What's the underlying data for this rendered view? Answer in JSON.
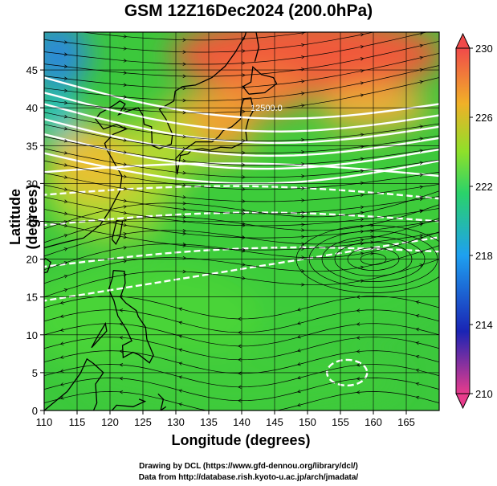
{
  "title": "GSM 12Z16Dec2024 (200.0hPa)",
  "x_axis": {
    "label": "Longitude (degrees)",
    "range": [
      110,
      170
    ],
    "ticks": [
      "110",
      "115",
      "120",
      "125",
      "130",
      "135",
      "140",
      "145",
      "150",
      "155",
      "160",
      "165"
    ]
  },
  "y_axis": {
    "label": "Latitude  (degrees)",
    "range": [
      0,
      50
    ],
    "ticks": [
      "0",
      "5",
      "10",
      "15",
      "20",
      "25",
      "30",
      "35",
      "40",
      "45"
    ]
  },
  "colorbar": {
    "min": 210,
    "max": 230,
    "labels": [
      "230",
      "226",
      "222",
      "218",
      "214",
      "210"
    ],
    "colors": [
      "#e83c8c",
      "#1a24b4",
      "#1ea0f0",
      "#2ad26a",
      "#8ee02a",
      "#f0b028",
      "#f04a4a"
    ]
  },
  "contour_label": "12500.0",
  "credits": {
    "line1": "Drawing by DCL (https://www.gfd-dennou.org/library/dcl/)",
    "line2": "Data from http://database.rish.kyoto-u.ac.jp/arch/jmadata/"
  }
}
